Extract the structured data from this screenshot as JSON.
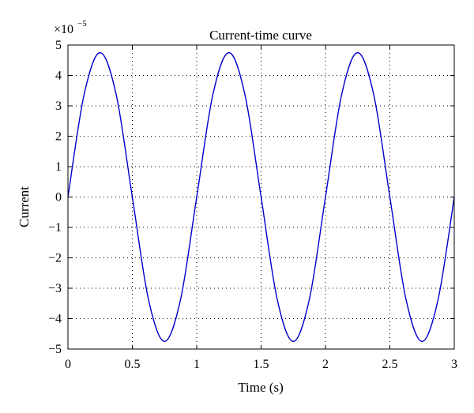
{
  "chart_data": {
    "type": "line",
    "title": "Current-time curve",
    "xlabel": "Time (s)",
    "ylabel": "Current",
    "y_multiplier": {
      "base": "×10",
      "exponent": "−5"
    },
    "xlim": [
      0,
      3
    ],
    "ylim": [
      -5,
      5
    ],
    "x_ticks": [
      0,
      0.5,
      1,
      1.5,
      2,
      2.5,
      3
    ],
    "x_tick_labels": [
      "0",
      "0.5",
      "1",
      "1.5",
      "2",
      "2.5",
      "3"
    ],
    "y_ticks": [
      -5,
      -4,
      -3,
      -2,
      -1,
      0,
      1,
      2,
      3,
      4,
      5
    ],
    "y_tick_labels": [
      "−5",
      "−4",
      "−3",
      "−2",
      "−1",
      "0",
      "1",
      "2",
      "3",
      "4",
      "5"
    ],
    "grid": "dotted",
    "box": true,
    "series": [
      {
        "color": "#0000cc",
        "x": [
          0,
          0.125,
          0.25,
          0.375,
          0.5,
          0.625,
          0.75,
          0.875,
          1,
          1.125,
          1.25,
          1.375,
          1.5,
          1.625,
          1.75,
          1.875,
          2,
          2.125,
          2.25,
          2.375,
          2.5,
          2.625,
          2.75,
          2.875,
          3
        ],
        "values": [
          0,
          3.36,
          4.75,
          3.36,
          0,
          -3.36,
          -4.75,
          -3.36,
          0,
          3.36,
          4.75,
          3.36,
          0,
          -3.36,
          -4.75,
          -3.36,
          0,
          3.36,
          4.75,
          3.36,
          0,
          -3.36,
          -4.75,
          -3.36,
          0
        ]
      }
    ]
  }
}
